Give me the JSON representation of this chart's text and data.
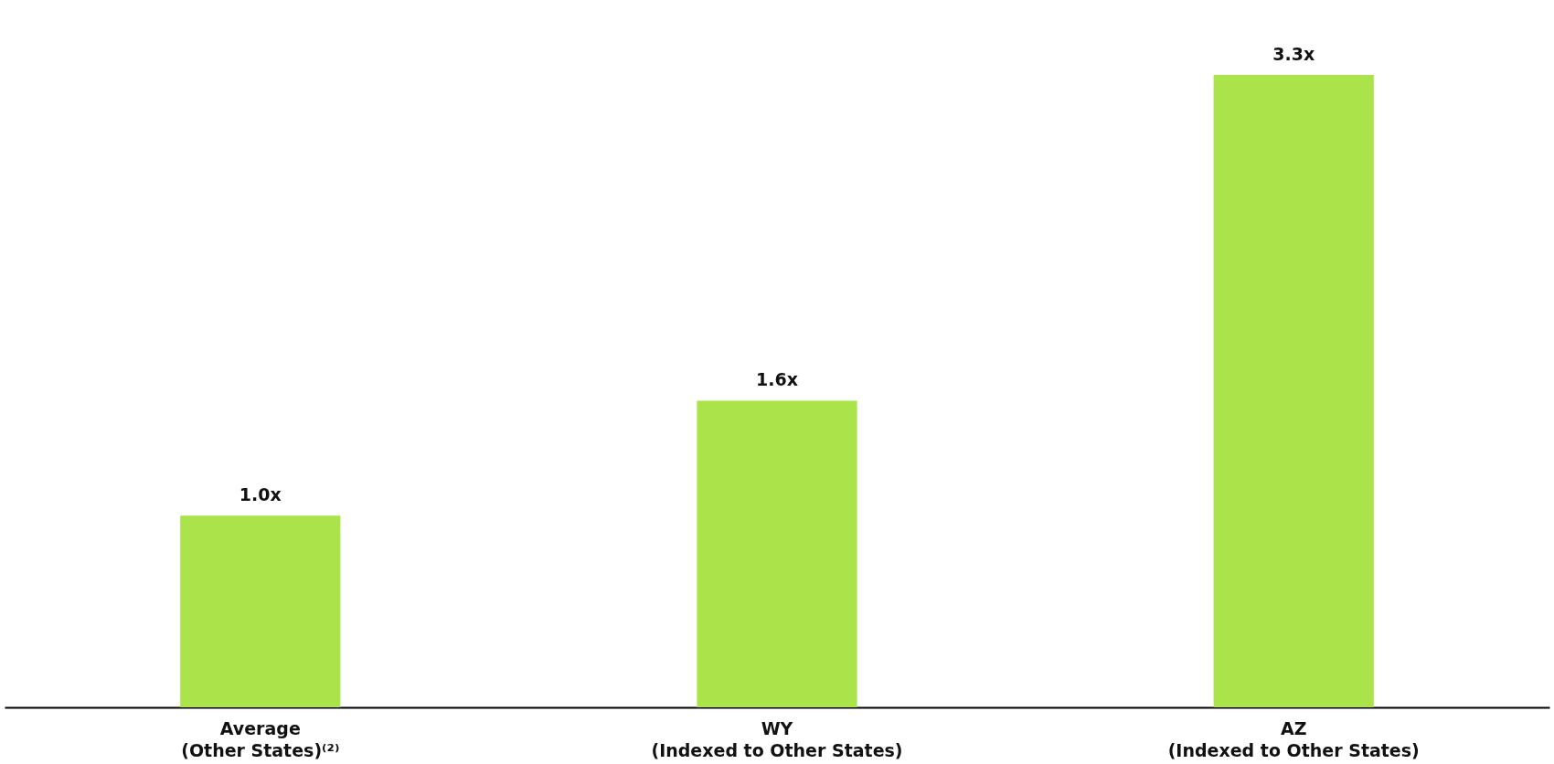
{
  "chart_data": {
    "type": "bar",
    "categories": [
      "Average\n(Other States)⁽²⁾",
      "WY\n(Indexed to Other States)",
      "AZ\n(Indexed to Other States)"
    ],
    "values": [
      1.0,
      1.6,
      3.3
    ],
    "value_labels": [
      "1.0x",
      "1.6x",
      "3.3x"
    ],
    "color": "#abe34b",
    "grid": false
  }
}
